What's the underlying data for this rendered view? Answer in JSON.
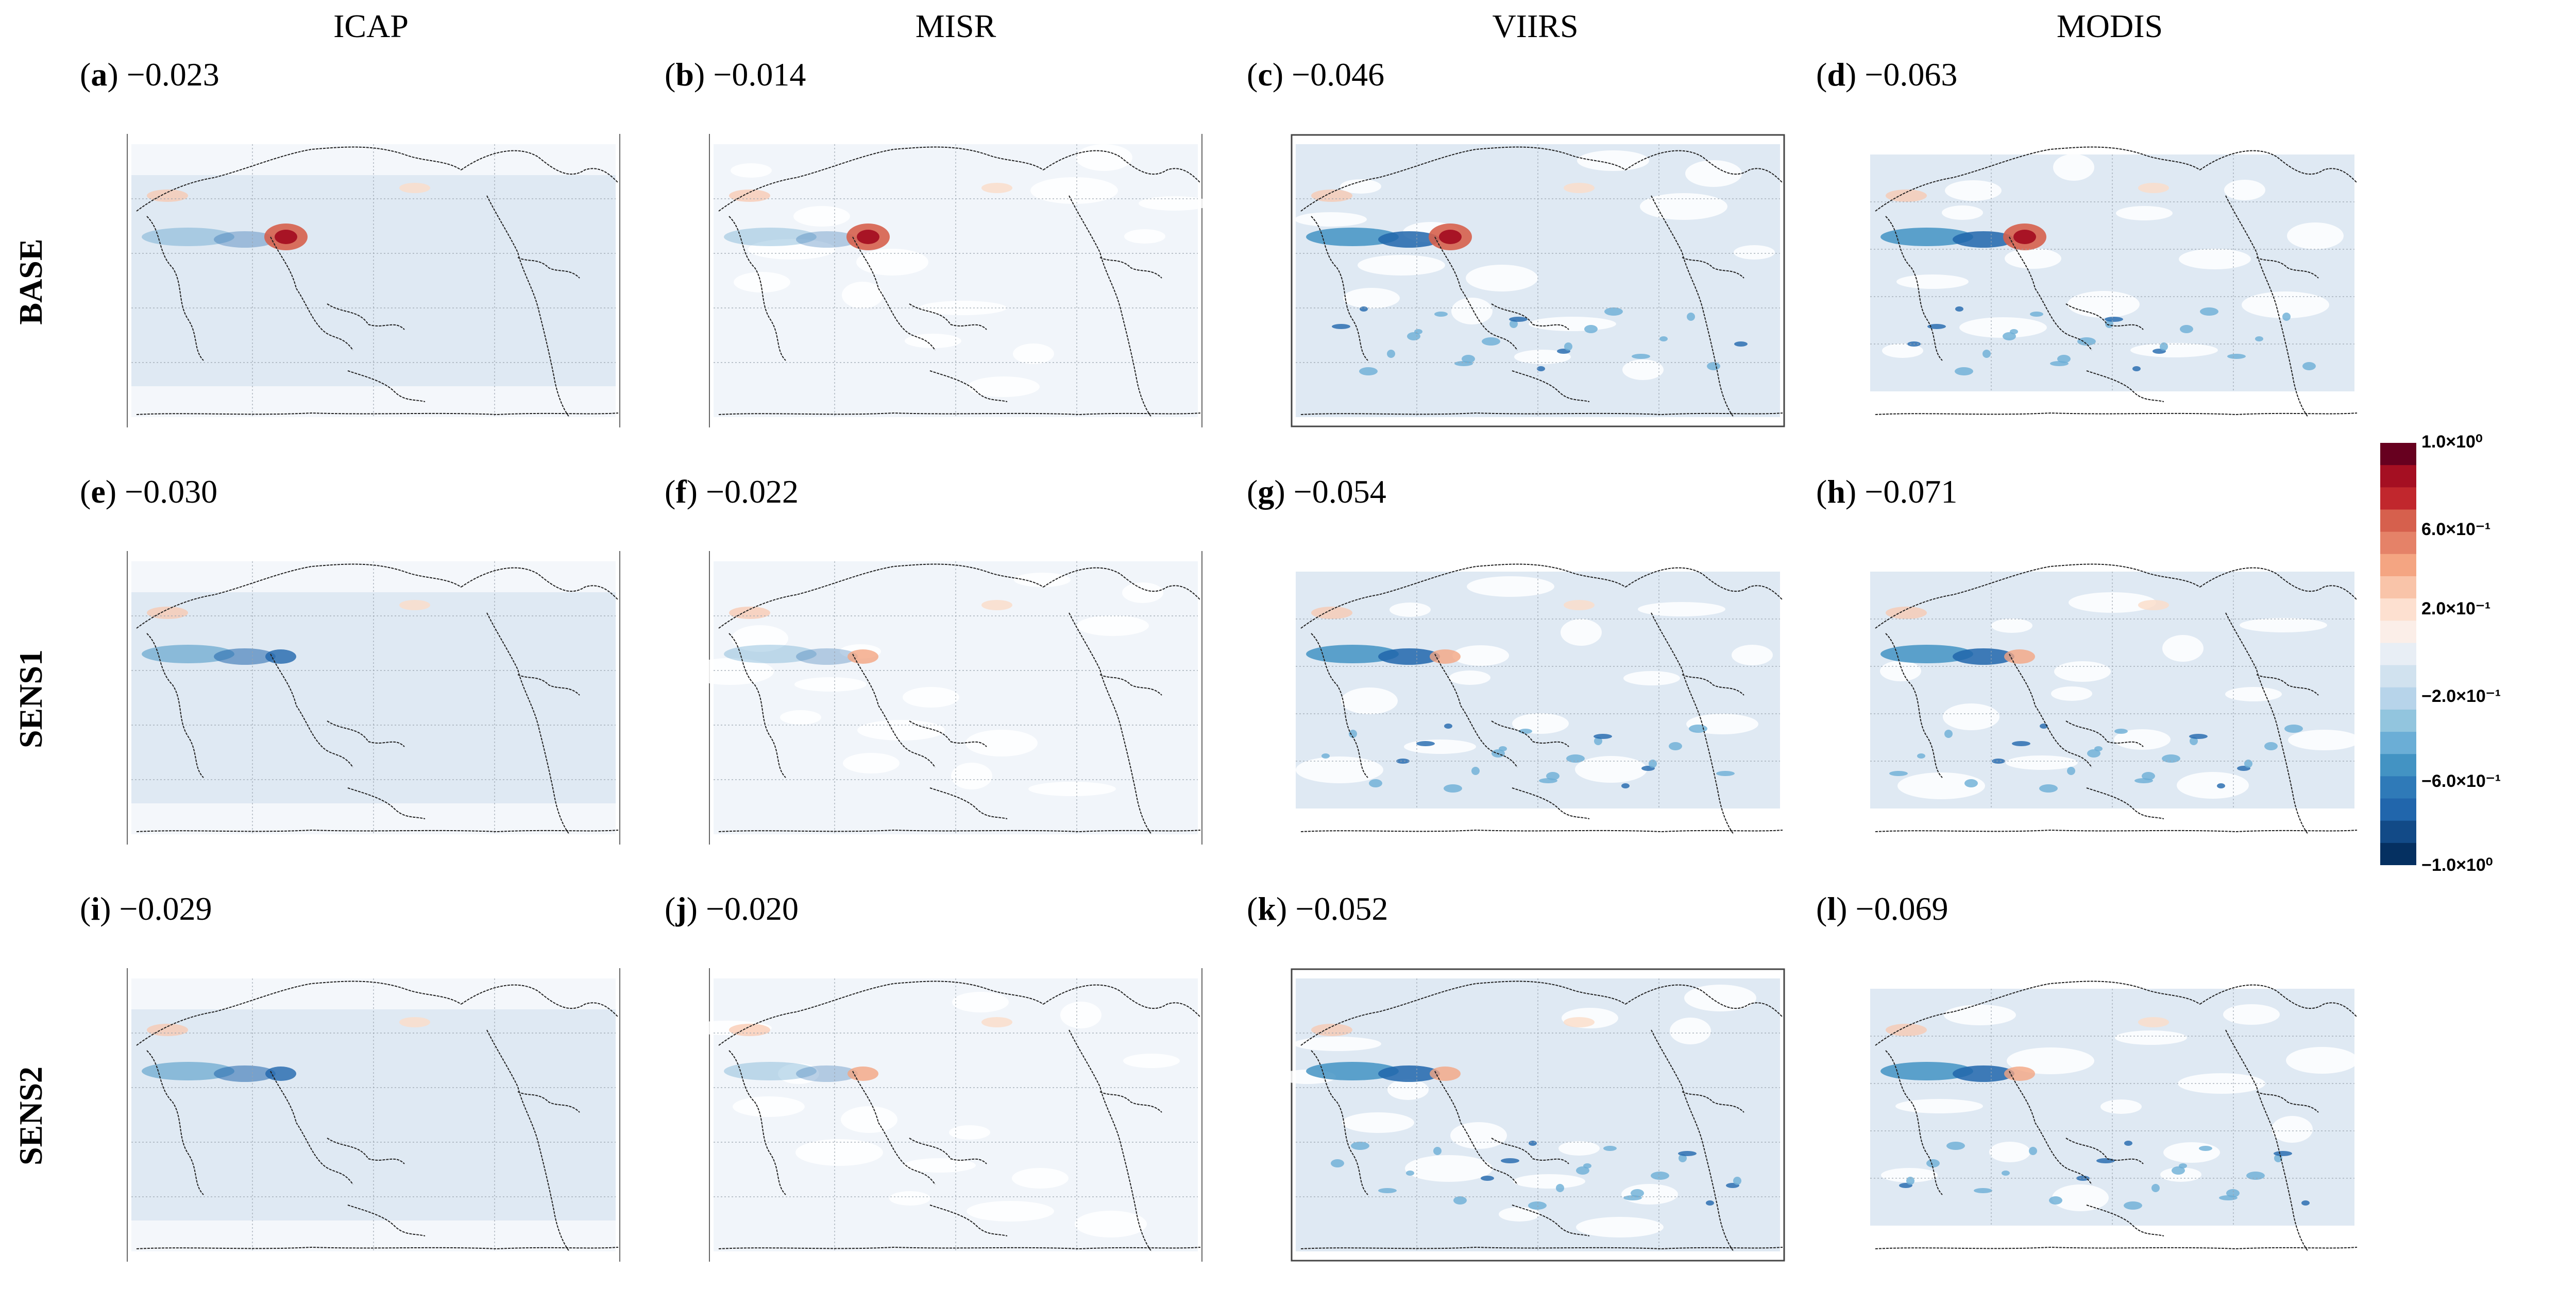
{
  "columns": [
    "ICAP",
    "MISR",
    "VIIRS",
    "MODIS"
  ],
  "rows": [
    "BASE",
    "SENS1",
    "SENS2"
  ],
  "panels": [
    {
      "letter": "a",
      "value": "−0.023"
    },
    {
      "letter": "b",
      "value": "−0.014"
    },
    {
      "letter": "c",
      "value": "−0.046"
    },
    {
      "letter": "d",
      "value": "−0.063"
    },
    {
      "letter": "e",
      "value": "−0.030"
    },
    {
      "letter": "f",
      "value": "−0.022"
    },
    {
      "letter": "g",
      "value": "−0.054"
    },
    {
      "letter": "h",
      "value": "−0.071"
    },
    {
      "letter": "i",
      "value": "−0.029"
    },
    {
      "letter": "j",
      "value": "−0.020"
    },
    {
      "letter": "k",
      "value": "−0.052"
    },
    {
      "letter": "l",
      "value": "−0.069"
    }
  ],
  "colorbar": {
    "ticks": [
      "1.0×10⁰",
      "6.0×10⁻¹",
      "2.0×10⁻¹",
      "−2.0×10⁻¹",
      "−6.0×10⁻¹",
      "−1.0×10⁰"
    ],
    "colors": [
      "#67001f",
      "#a50f22",
      "#c1272d",
      "#d6604d",
      "#e58268",
      "#f4a582",
      "#f9c4a9",
      "#fde0d0",
      "#fbeee8",
      "#e8eef5",
      "#d1e2ef",
      "#b7d4ea",
      "#92c5de",
      "#6baed6",
      "#4393c3",
      "#2f7ab8",
      "#2166ac",
      "#124a87",
      "#053061"
    ]
  },
  "chart_data": {
    "type": "heatmap",
    "layout": "4 columns (datasets) x 3 rows (experiments) of global maps",
    "columns": [
      "ICAP",
      "MISR",
      "VIIRS",
      "MODIS"
    ],
    "rows": [
      "BASE",
      "SENS1",
      "SENS2"
    ],
    "panel_values": [
      [
        -0.023,
        -0.014,
        -0.046,
        -0.063
      ],
      [
        -0.03,
        -0.022,
        -0.054,
        -0.071
      ],
      [
        -0.029,
        -0.02,
        -0.052,
        -0.069
      ]
    ],
    "colorbar_range": [
      -1.0,
      1.0
    ],
    "colorbar_ticks": [
      1.0,
      0.6,
      0.2,
      -0.2,
      -0.6,
      -1.0
    ],
    "colormap": "diverging red-blue"
  }
}
